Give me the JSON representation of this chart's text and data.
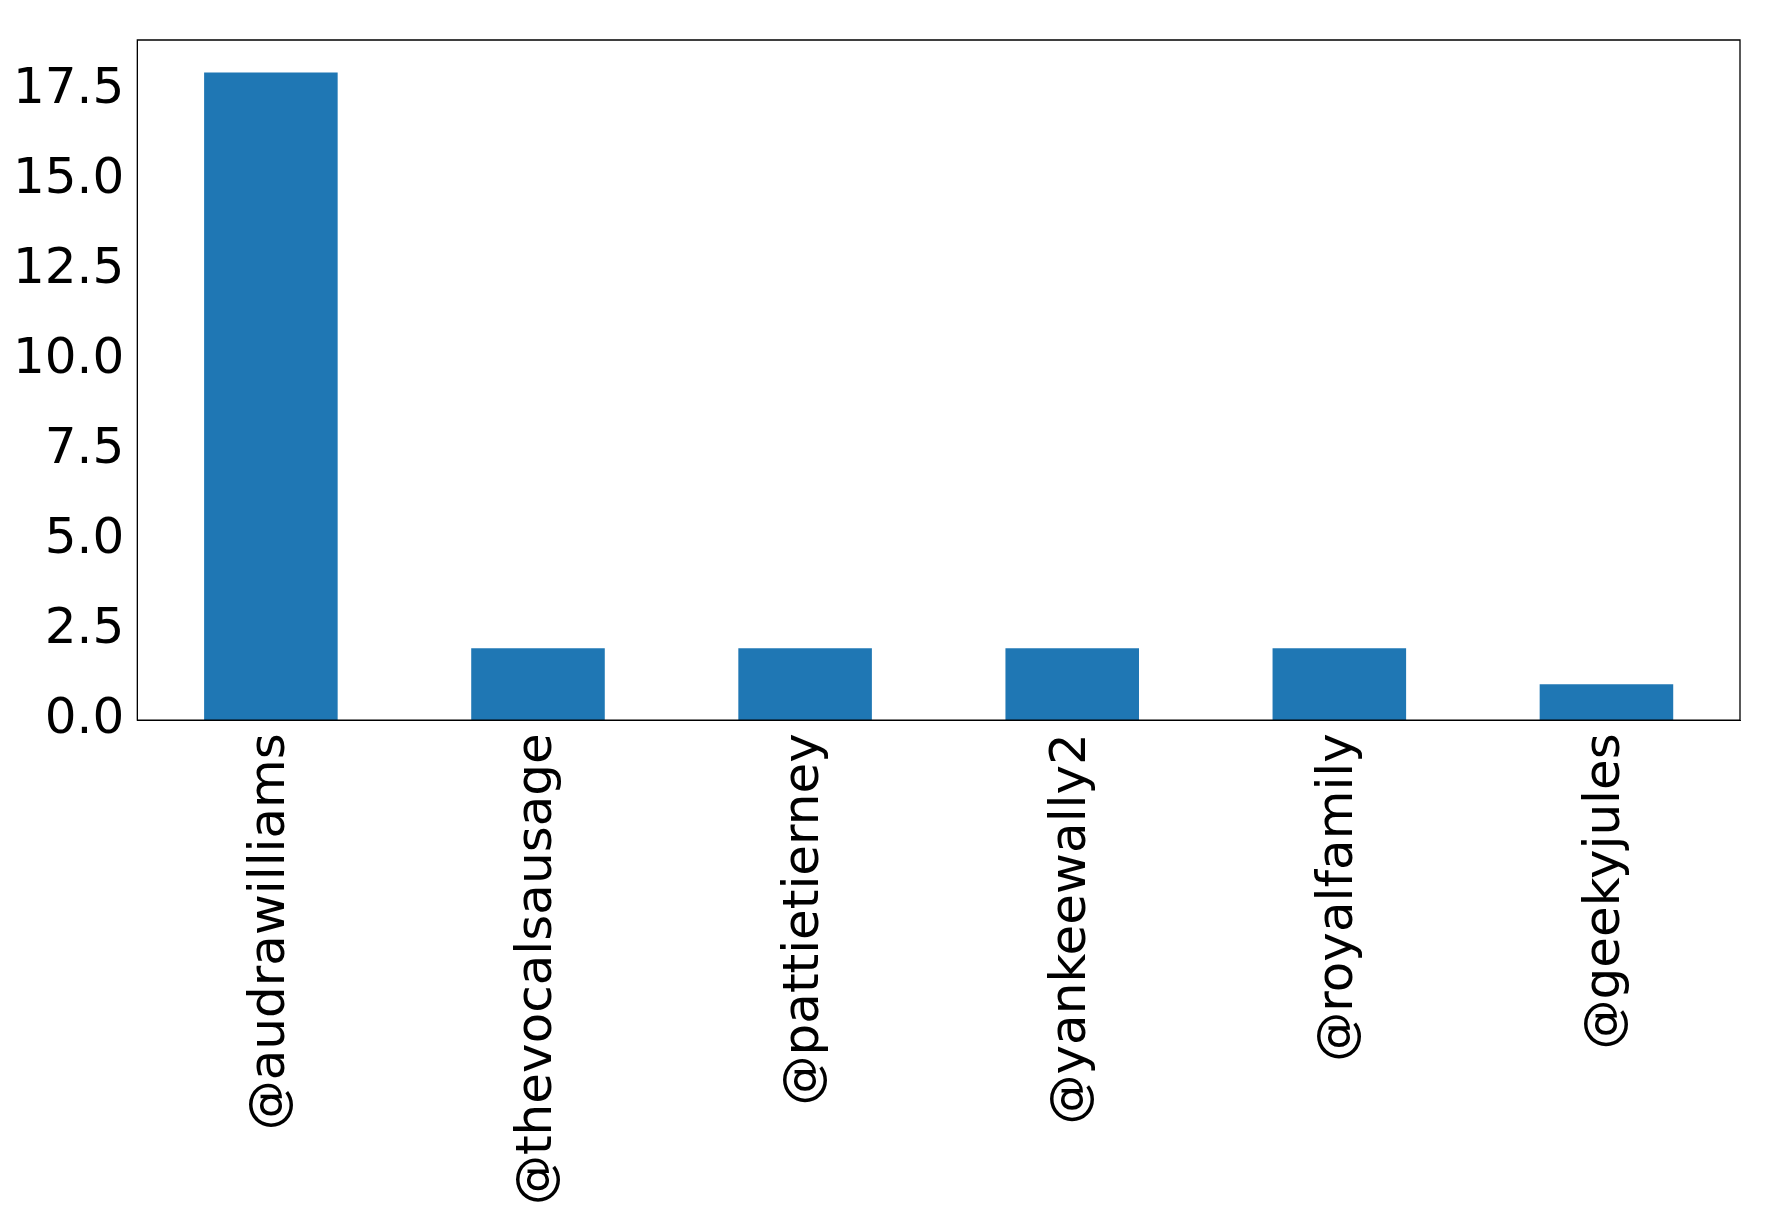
{
  "chart_data": {
    "type": "bar",
    "categories": [
      "@audrawilliams",
      "@thevocalsausage",
      "@pattietierney",
      "@yankeewally2",
      "@royalfamily",
      "@geekyjules"
    ],
    "values": [
      18,
      2,
      2,
      2,
      2,
      1
    ],
    "color": "#1f77b4",
    "ylim": [
      0,
      18.9
    ],
    "yticks": [
      {
        "value": 0,
        "label": "0.0"
      },
      2.5,
      {
        "value": 5,
        "label": "5.0"
      },
      7.5,
      {
        "value": 10,
        "label": "10.0"
      },
      12.5,
      {
        "value": 15,
        "label": "15.0"
      },
      17.5
    ],
    "grid": false,
    "legend": false
  }
}
